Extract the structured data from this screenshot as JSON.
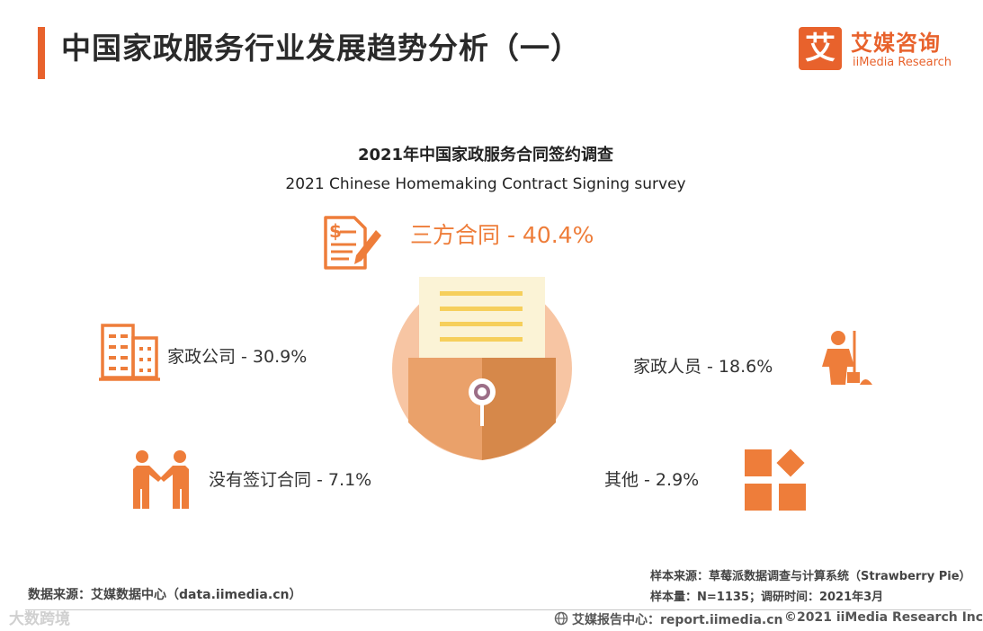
{
  "header": {
    "title": "中国家政服务行业发展趋势分析（一）",
    "logo_mark": "艾",
    "logo_cn": "艾媒咨询",
    "logo_en": "iiMedia Research"
  },
  "chart_data": {
    "type": "pie",
    "title": "2021年中国家政服务合同签约调查",
    "subtitle": "2021 Chinese Homemaking Contract Signing survey",
    "categories": [
      "三方合同",
      "家政公司",
      "家政人员",
      "没有签订合同",
      "其他"
    ],
    "values": [
      40.4,
      30.9,
      18.6,
      7.1,
      2.9
    ],
    "unit": "%",
    "labels": [
      "三方合同 - 40.4%",
      "家政公司 - 30.9%",
      "家政人员 - 18.6%",
      "没有签订合同 - 7.1%",
      "其他 - 2.9%"
    ],
    "icons": [
      "contract-document-icon",
      "office-building-icon",
      "housekeeper-icon",
      "handshake-icon",
      "shapes-icon"
    ],
    "colors": {
      "accent": "#ee7d3a",
      "icon": "#ee7d3a",
      "envelope_light": "#eaa16a",
      "envelope_dark": "#d6884a",
      "circle": "#f7c5a3",
      "paper": "#fbf3d6",
      "paper_line": "#f6cf5b"
    }
  },
  "footer": {
    "source_left": "数据来源：艾媒数据中心（data.iimedia.cn）",
    "sample_source": "样本来源：草莓派数据调查与计算系统（Strawberry Pie）",
    "sample_size": "样本量：N=1135；调研时间：2021年3月",
    "report_center": "艾媒报告中心：report.iimedia.cn",
    "copyright": "©2021  iiMedia Research  Inc",
    "watermark": "大数跨境"
  }
}
